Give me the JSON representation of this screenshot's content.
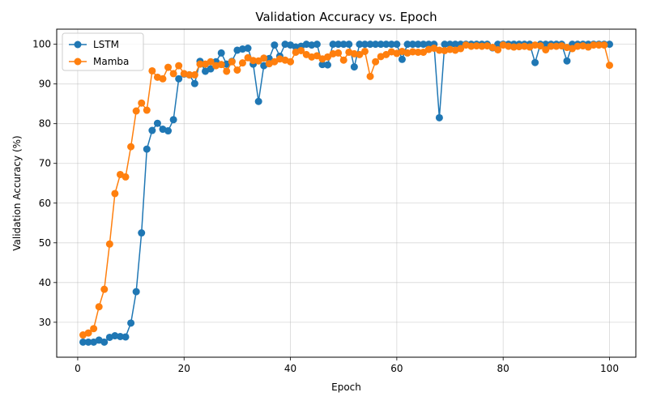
{
  "chart_data": {
    "type": "line",
    "title": "Validation Accuracy vs. Epoch",
    "xlabel": "Epoch",
    "ylabel": "Validation Accuracy (%)",
    "xlim": [
      -3.95,
      104.95
    ],
    "ylim": [
      21.2,
      103.8
    ],
    "xticks": [
      0,
      20,
      40,
      60,
      80,
      100
    ],
    "yticks": [
      30,
      40,
      50,
      60,
      70,
      80,
      90,
      100
    ],
    "grid": true,
    "legend_position": "top-left",
    "x": [
      1,
      2,
      3,
      4,
      5,
      6,
      7,
      8,
      9,
      10,
      11,
      12,
      13,
      14,
      15,
      16,
      17,
      18,
      19,
      20,
      21,
      22,
      23,
      24,
      25,
      26,
      27,
      28,
      29,
      30,
      31,
      32,
      33,
      34,
      35,
      36,
      37,
      38,
      39,
      40,
      41,
      42,
      43,
      44,
      45,
      46,
      47,
      48,
      49,
      50,
      51,
      52,
      53,
      54,
      55,
      56,
      57,
      58,
      59,
      60,
      61,
      62,
      63,
      64,
      65,
      66,
      67,
      68,
      69,
      70,
      71,
      72,
      73,
      74,
      75,
      76,
      77,
      78,
      79,
      80,
      81,
      82,
      83,
      84,
      85,
      86,
      87,
      88,
      89,
      90,
      91,
      92,
      93,
      94,
      95,
      96,
      97,
      98,
      99,
      100
    ],
    "series": [
      {
        "name": "LSTM",
        "color": "#1f77b4",
        "values": [
          25.0,
          25.0,
          25.0,
          25.5,
          25.0,
          26.2,
          26.6,
          26.4,
          26.3,
          29.8,
          37.7,
          52.5,
          73.6,
          78.3,
          80.1,
          78.6,
          78.2,
          81.0,
          91.3,
          92.5,
          92.3,
          90.1,
          95.7,
          93.2,
          93.8,
          95.6,
          97.8,
          95.0,
          95.7,
          98.5,
          98.8,
          99.0,
          95.0,
          85.6,
          94.6,
          96.4,
          99.8,
          97.0,
          100.0,
          99.8,
          99.3,
          99.5,
          100.0,
          99.8,
          100.0,
          94.9,
          94.8,
          100.0,
          100.0,
          100.0,
          100.0,
          94.3,
          100.0,
          100.0,
          100.0,
          100.0,
          100.0,
          100.0,
          100.0,
          100.0,
          96.2,
          100.0,
          100.0,
          100.0,
          100.0,
          100.0,
          100.0,
          81.5,
          100.0,
          100.0,
          100.0,
          100.0,
          100.0,
          100.0,
          100.0,
          100.0,
          100.0,
          99.1,
          100.0,
          100.0,
          100.0,
          100.0,
          100.0,
          100.0,
          100.0,
          95.4,
          100.0,
          100.0,
          100.0,
          100.0,
          100.0,
          95.8,
          100.0,
          100.0,
          100.0,
          100.0,
          100.0,
          100.0,
          100.0,
          100.0
        ]
      },
      {
        "name": "Mamba",
        "color": "#ff7f0e",
        "values": [
          26.8,
          27.3,
          28.4,
          33.9,
          38.3,
          49.7,
          62.4,
          67.2,
          66.6,
          74.2,
          83.2,
          85.2,
          83.4,
          93.3,
          91.7,
          91.3,
          94.2,
          92.6,
          94.6,
          92.6,
          92.3,
          92.3,
          95.0,
          95.0,
          95.6,
          94.6,
          94.9,
          93.2,
          95.6,
          93.5,
          95.3,
          96.6,
          95.9,
          95.8,
          96.5,
          95.1,
          95.6,
          96.3,
          96.0,
          95.6,
          98.0,
          98.4,
          97.4,
          96.8,
          97.1,
          96.3,
          96.8,
          97.6,
          97.8,
          96.0,
          98.0,
          97.6,
          97.4,
          98.2,
          91.9,
          95.6,
          96.9,
          97.4,
          98.1,
          97.7,
          98.2,
          97.8,
          98.1,
          98.0,
          98.0,
          98.7,
          99.0,
          98.5,
          98.4,
          98.7,
          98.5,
          98.9,
          99.8,
          99.5,
          99.6,
          99.5,
          99.6,
          99.2,
          98.6,
          99.8,
          99.5,
          99.3,
          99.4,
          99.5,
          99.3,
          99.8,
          99.6,
          98.6,
          99.5,
          99.5,
          99.6,
          99.2,
          98.9,
          99.5,
          99.6,
          99.3,
          99.8,
          99.8,
          99.8,
          94.7
        ]
      }
    ]
  }
}
